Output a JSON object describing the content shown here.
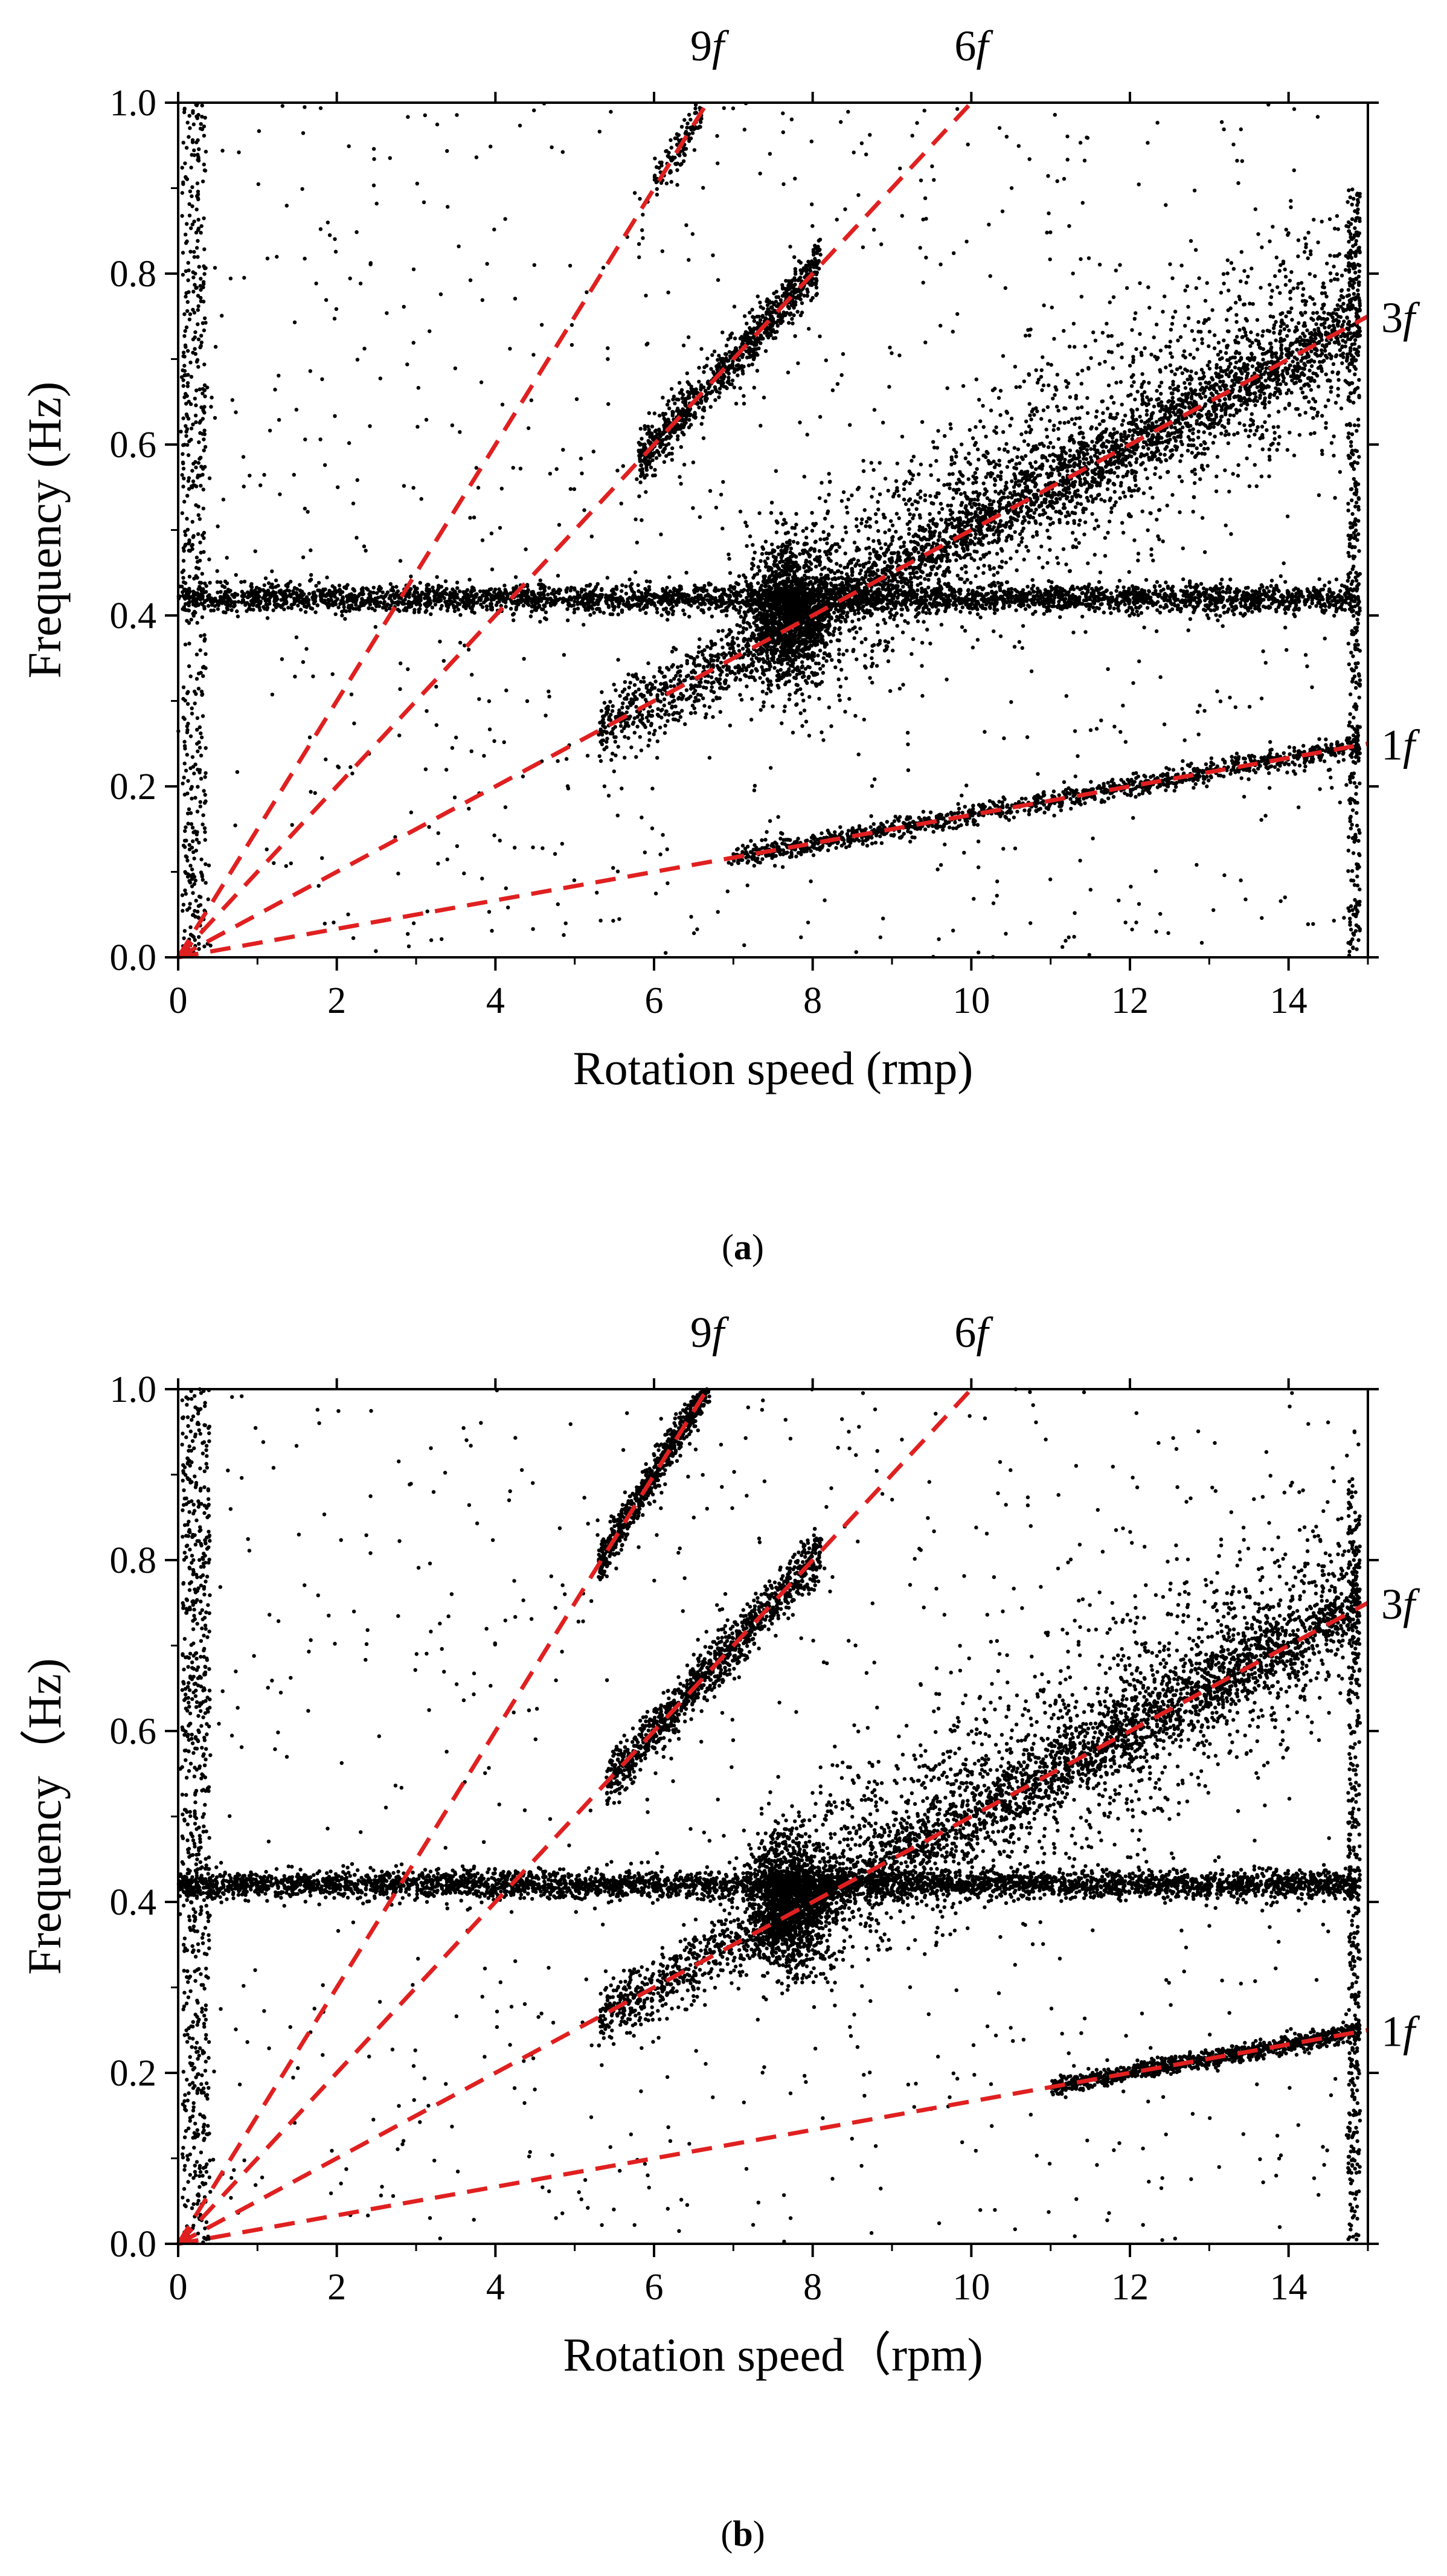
{
  "figure": {
    "panels": [
      "a",
      "b"
    ]
  },
  "colors": {
    "points": "#000000",
    "fit_lines": "#e02020",
    "axis": "#000000",
    "background": "#ffffff"
  },
  "chart_data": [
    {
      "panel": "a",
      "caption": "(a)",
      "caption_letter": "a",
      "type": "scatter",
      "xlabel": "Rotation speed (rmp)",
      "ylabel": "Frequency (Hz)",
      "xlim": [
        0,
        15
      ],
      "ylim": [
        0,
        1.0
      ],
      "xticks": [
        0,
        2,
        4,
        6,
        8,
        10,
        12,
        14
      ],
      "yticks": [
        0.0,
        0.2,
        0.4,
        0.6,
        0.8,
        1.0
      ],
      "xtick_labels": [
        "0",
        "2",
        "4",
        "6",
        "8",
        "10",
        "12",
        "14"
      ],
      "ytick_labels": [
        "0.0",
        "0.2",
        "0.4",
        "0.6",
        "0.8",
        "1.0"
      ],
      "grid": false,
      "harmonic_lines": [
        {
          "label": "1f",
          "num": "1",
          "sym": "f",
          "multiplier": 1,
          "label_pos": "right",
          "x": [
            0,
            15
          ],
          "y": [
            0,
            0.25
          ]
        },
        {
          "label": "3f",
          "num": "3",
          "sym": "f",
          "multiplier": 3,
          "label_pos": "right",
          "x": [
            0,
            15
          ],
          "y": [
            0,
            0.75
          ]
        },
        {
          "label": "6f",
          "num": "6",
          "sym": "f",
          "multiplier": 6,
          "label_pos": "top",
          "x": [
            0,
            10
          ],
          "y": [
            0,
            1.0
          ]
        },
        {
          "label": "9f",
          "num": "9",
          "sym": "f",
          "multiplier": 9,
          "label_pos": "top",
          "x": [
            0,
            6.67
          ],
          "y": [
            0,
            1.0
          ]
        }
      ],
      "scatter_clusters": [
        {
          "name": "constant-0.42Hz-band",
          "x_range": [
            0,
            14.9
          ],
          "y_center": 0.42,
          "y_spread": 0.008,
          "count": 3500
        },
        {
          "name": "hub-7.7rpm",
          "x_center": 7.7,
          "x_spread": 0.25,
          "y_center": 0.4,
          "y_spread": 0.04,
          "count": 1500
        },
        {
          "name": "3f-branch",
          "x_range": [
            5.3,
            14.9
          ],
          "y_ratio": 0.05,
          "y_spread": 0.02,
          "count": 2500
        },
        {
          "name": "3f-upper-cloud",
          "x_range": [
            8.0,
            14.9
          ],
          "y_ratio": 0.05,
          "y_offset": 0.06,
          "y_spread": 0.06,
          "count": 2000
        },
        {
          "name": "1f-branch",
          "x_range": [
            7.0,
            14.9
          ],
          "y_ratio": 0.01667,
          "y_spread": 0.006,
          "count": 1200
        },
        {
          "name": "6f-branch",
          "x_range": [
            5.8,
            8.1
          ],
          "y_ratio": 0.1,
          "y_spread": 0.015,
          "count": 900
        },
        {
          "name": "9f-branch",
          "x_range": [
            6.0,
            6.6
          ],
          "y_ratio": 0.15,
          "y_spread": 0.012,
          "count": 120
        },
        {
          "name": "left-edge-column",
          "x_range": [
            0.05,
            0.35
          ],
          "y_range": [
            0.0,
            1.0
          ],
          "count": 500
        },
        {
          "name": "right-edge-column",
          "x_range": [
            14.75,
            14.9
          ],
          "y_range": [
            0.0,
            0.9
          ],
          "count": 400
        },
        {
          "name": "background-noise",
          "x_range": [
            0,
            14.9
          ],
          "y_range": [
            0,
            1.0
          ],
          "count": 900
        }
      ]
    },
    {
      "panel": "b",
      "caption": "(b)",
      "caption_letter": "b",
      "type": "scatter",
      "xlabel": "Rotation speed（rpm)",
      "ylabel": "Frequency（Hz)",
      "xlim": [
        0,
        15
      ],
      "ylim": [
        0,
        1.0
      ],
      "xticks": [
        0,
        2,
        4,
        6,
        8,
        10,
        12,
        14
      ],
      "yticks": [
        0.0,
        0.2,
        0.4,
        0.6,
        0.8,
        1.0
      ],
      "xtick_labels": [
        "0",
        "2",
        "4",
        "6",
        "8",
        "10",
        "12",
        "14"
      ],
      "ytick_labels": [
        "0.0",
        "0.2",
        "0.4",
        "0.6",
        "0.8",
        "1.0"
      ],
      "grid": false,
      "harmonic_lines": [
        {
          "label": "1f",
          "num": "1",
          "sym": "f",
          "multiplier": 1,
          "label_pos": "right",
          "x": [
            0,
            15
          ],
          "y": [
            0,
            0.25
          ]
        },
        {
          "label": "3f",
          "num": "3",
          "sym": "f",
          "multiplier": 3,
          "label_pos": "right",
          "x": [
            0,
            15
          ],
          "y": [
            0,
            0.75
          ]
        },
        {
          "label": "6f",
          "num": "6",
          "sym": "f",
          "multiplier": 6,
          "label_pos": "top",
          "x": [
            0,
            10
          ],
          "y": [
            0,
            1.0
          ]
        },
        {
          "label": "9f",
          "num": "9",
          "sym": "f",
          "multiplier": 9,
          "label_pos": "top",
          "x": [
            0,
            6.67
          ],
          "y": [
            0,
            1.0
          ]
        }
      ],
      "scatter_clusters": [
        {
          "name": "constant-0.42Hz-band",
          "x_range": [
            0,
            14.9
          ],
          "y_center": 0.42,
          "y_spread": 0.008,
          "count": 4000
        },
        {
          "name": "hub-7.7rpm",
          "x_center": 7.7,
          "x_spread": 0.25,
          "y_center": 0.4,
          "y_spread": 0.04,
          "count": 1500
        },
        {
          "name": "3f-branch",
          "x_range": [
            5.3,
            14.9
          ],
          "y_ratio": 0.05,
          "y_spread": 0.02,
          "count": 2500
        },
        {
          "name": "3f-upper-cloud",
          "x_range": [
            8.0,
            14.9
          ],
          "y_ratio": 0.05,
          "y_offset": 0.07,
          "y_spread": 0.06,
          "count": 1800
        },
        {
          "name": "1f-branch",
          "x_range": [
            11.0,
            14.9
          ],
          "y_ratio": 0.01667,
          "y_spread": 0.005,
          "count": 1000
        },
        {
          "name": "6f-branch",
          "x_range": [
            5.4,
            8.1
          ],
          "y_ratio": 0.1,
          "y_spread": 0.015,
          "count": 1100
        },
        {
          "name": "9f-branch",
          "x_range": [
            5.3,
            6.7
          ],
          "y_ratio": 0.15,
          "y_spread": 0.012,
          "count": 700
        },
        {
          "name": "left-edge-column",
          "x_range": [
            0.05,
            0.4
          ],
          "y_range": [
            0.0,
            1.0
          ],
          "count": 700
        },
        {
          "name": "right-edge-column",
          "x_range": [
            14.75,
            14.9
          ],
          "y_range": [
            0.0,
            0.9
          ],
          "count": 400
        },
        {
          "name": "background-noise",
          "x_range": [
            0,
            14.9
          ],
          "y_range": [
            0,
            1.0
          ],
          "count": 800
        }
      ]
    }
  ]
}
